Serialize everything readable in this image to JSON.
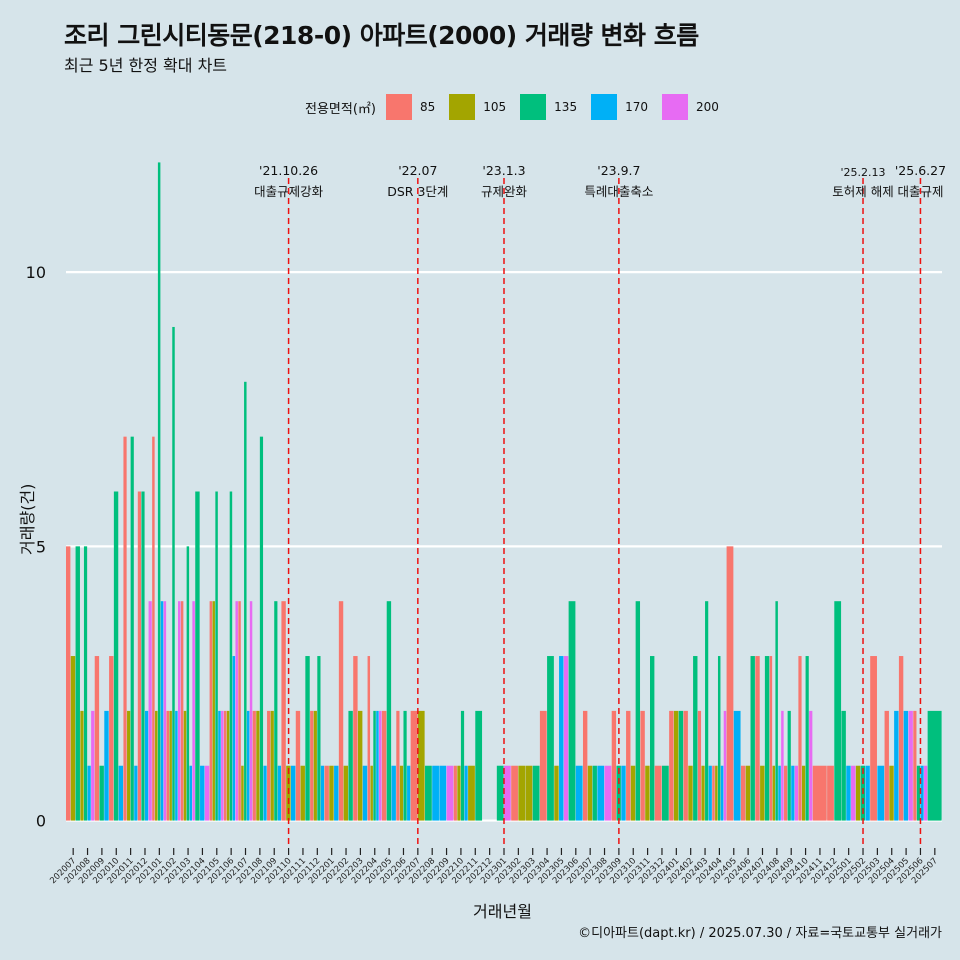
{
  "header": {
    "title": "조리 그린시티동문(218-0) 아파트(2000) 거래량 변화 흐름",
    "subtitle": "최근 5년 한정 확대 차트"
  },
  "legend": {
    "title": "전용면적(㎡)",
    "items": [
      {
        "label": "85",
        "color": "#f8766d"
      },
      {
        "label": "105",
        "color": "#a3a500"
      },
      {
        "label": "135",
        "color": "#00bf7d"
      },
      {
        "label": "170",
        "color": "#00b0f6"
      },
      {
        "label": "200",
        "color": "#e76bf3"
      }
    ]
  },
  "caption": "©디아파트(dapt.kr) / 2025.07.30 / 자료=국토교통부 실거래가",
  "chart_data": {
    "type": "bar",
    "title": "조리 그린시티동문(218-0) 아파트(2000) 거래량 변화 흐름",
    "subtitle": "최근 5년 한정 확대 차트",
    "xlabel": "거래년월",
    "ylabel": "거래량(건)",
    "ylim": [
      -0.5,
      12.5
    ],
    "yticks": [
      0,
      5,
      10
    ],
    "series_names": [
      "85",
      "105",
      "135",
      "170",
      "200"
    ],
    "colors": [
      "#f8766d",
      "#a3a500",
      "#00bf7d",
      "#00b0f6",
      "#e76bf3"
    ],
    "categories": [
      "202007",
      "202008",
      "202009",
      "202010",
      "202011",
      "202012",
      "202101",
      "202102",
      "202103",
      "202104",
      "202105",
      "202106",
      "202107",
      "202108",
      "202109",
      "202110",
      "202111",
      "202112",
      "202201",
      "202202",
      "202203",
      "202204",
      "202205",
      "202206",
      "202207",
      "202208",
      "202209",
      "202210",
      "202211",
      "202212",
      "202301",
      "202302",
      "202303",
      "202304",
      "202305",
      "202306",
      "202307",
      "202308",
      "202309",
      "202310",
      "202311",
      "202312",
      "202401",
      "202402",
      "202403",
      "202404",
      "202405",
      "202406",
      "202407",
      "202408",
      "202409",
      "202410",
      "202411",
      "202412",
      "202501",
      "202502",
      "202503",
      "202504",
      "202505",
      "202506",
      "202507"
    ],
    "month_data": [
      {
        "85": 5,
        "105": 3,
        "135": 5
      },
      {
        "105": 2,
        "135": 5,
        "170": 1,
        "200": 2
      },
      {
        "85": 3,
        "135": 1,
        "170": 2
      },
      {
        "85": 3,
        "135": 6,
        "170": 1
      },
      {
        "85": 7,
        "105": 2,
        "135": 7,
        "170": 1
      },
      {
        "85": 6,
        "135": 6,
        "170": 2,
        "200": 4
      },
      {
        "85": 7,
        "105": 2,
        "135": 12,
        "170": 4,
        "200": 4
      },
      {
        "85": 2,
        "105": 2,
        "135": 9,
        "170": 2,
        "200": 4
      },
      {
        "85": 4,
        "105": 2,
        "135": 5,
        "170": 1,
        "200": 4
      },
      {
        "135": 6,
        "170": 1,
        "200": 1
      },
      {
        "85": 4,
        "105": 4,
        "135": 6,
        "170": 2,
        "200": 2
      },
      {
        "85": 2,
        "105": 2,
        "135": 6,
        "170": 3,
        "200": 4
      },
      {
        "85": 4,
        "105": 1,
        "135": 8,
        "170": 2,
        "200": 4
      },
      {
        "85": 2,
        "105": 2,
        "135": 7,
        "170": 1
      },
      {
        "85": 2,
        "105": 2,
        "135": 4,
        "170": 1
      },
      {
        "85": 4,
        "105": 1,
        "170": 1
      },
      {
        "85": 2,
        "105": 1,
        "135": 3
      },
      {
        "85": 2,
        "105": 2,
        "135": 3,
        "170": 1
      },
      {
        "85": 1,
        "105": 1,
        "170": 1
      },
      {
        "85": 4,
        "105": 1,
        "135": 2
      },
      {
        "85": 3,
        "105": 2,
        "170": 1
      },
      {
        "85": 3,
        "105": 1,
        "135": 2,
        "170": 2,
        "200": 2
      },
      {
        "85": 2,
        "135": 4,
        "170": 1
      },
      {
        "85": 2,
        "105": 1,
        "135": 2,
        "170": 1
      },
      {
        "85": 2,
        "105": 2
      },
      {
        "135": 1,
        "170": 1
      },
      {
        "170": 1,
        "200": 1
      },
      {
        "85": 1,
        "105": 1,
        "135": 2,
        "170": 1
      },
      {
        "105": 1,
        "135": 2
      },
      {},
      {
        "135": 1,
        "200": 1
      },
      {
        "85": 1,
        "105": 1
      },
      {
        "105": 1,
        "135": 1
      },
      {
        "85": 2,
        "135": 3
      },
      {
        "105": 1,
        "170": 3,
        "200": 3
      },
      {
        "135": 4,
        "170": 1
      },
      {
        "85": 2,
        "105": 1,
        "135": 1
      },
      {
        "170": 1,
        "200": 1
      },
      {
        "85": 2,
        "135": 1,
        "170": 1
      },
      {
        "85": 2,
        "105": 1,
        "135": 4
      },
      {
        "85": 2,
        "105": 1,
        "135": 3
      },
      {
        "85": 1,
        "135": 1
      },
      {
        "85": 2,
        "105": 2,
        "135": 2
      },
      {
        "85": 2,
        "105": 1,
        "135": 3
      },
      {
        "85": 2,
        "105": 1,
        "135": 4,
        "170": 1
      },
      {
        "85": 1,
        "105": 1,
        "135": 3,
        "170": 1,
        "200": 2
      },
      {
        "85": 5,
        "170": 2
      },
      {
        "85": 1,
        "105": 1,
        "135": 3
      },
      {
        "85": 3,
        "105": 1,
        "135": 3
      },
      {
        "85": 3,
        "105": 1,
        "135": 4,
        "170": 1,
        "200": 2
      },
      {
        "85": 1,
        "135": 2,
        "170": 1,
        "200": 1
      },
      {
        "85": 3,
        "105": 1,
        "135": 3,
        "200": 2
      },
      {
        "85": 1
      },
      {
        "85": 1,
        "135": 4
      },
      {
        "135": 2,
        "170": 1,
        "200": 1
      },
      {
        "105": 1,
        "135": 1,
        "170": 1
      },
      {
        "85": 3,
        "170": 1
      },
      {
        "85": 2,
        "105": 1,
        "170": 2
      },
      {
        "85": 3,
        "170": 2,
        "200": 2
      },
      {
        "85": 2,
        "135": 1,
        "170": 1,
        "200": 1
      },
      {
        "135": 2
      }
    ],
    "events": [
      {
        "month": "202110",
        "label_top": "'21.10.26",
        "label_bottom": "대출규제강화"
      },
      {
        "month": "202207",
        "label_top": "'22.07",
        "label_bottom": "DSR 3단계"
      },
      {
        "month": "202301",
        "label_top": "'23.1.3",
        "label_bottom": "규제완화"
      },
      {
        "month": "202309",
        "label_top": "'23.9.7",
        "label_bottom": "특례대출축소"
      },
      {
        "month": "202502",
        "label_top": "'25.2.13",
        "label_bottom": "토허제 해제"
      },
      {
        "month": "202506",
        "label_top": "'25.6.27",
        "label_bottom": "대출규제"
      }
    ]
  }
}
